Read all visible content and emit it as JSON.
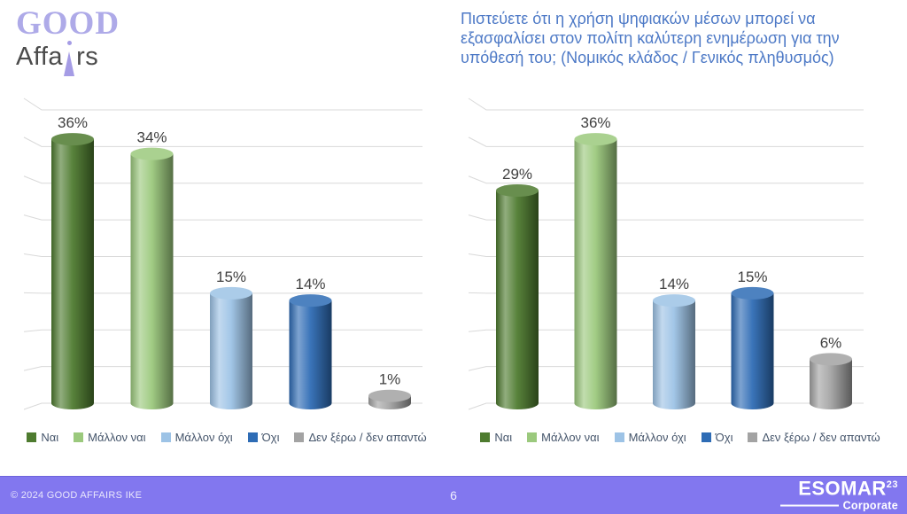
{
  "logo": {
    "line1": "GOOD",
    "line2_pre": "Affa",
    "line2_post": "rs",
    "accent_color": "#aeaae8",
    "text_color": "#4b4b4b"
  },
  "header": {
    "title": "Πιστεύετε ότι η χρήση ψηφιακών μέσων μπορεί να\nεξασφαλίσει στον πολίτη καλύτερη ενημέρωση για την\nυπόθεσή του; (Νομικός κλάδος / Γενικός πληθυσμός)",
    "title_color": "#4d79c6"
  },
  "chart_data": [
    {
      "type": "bar",
      "style": "3d-cylinder",
      "position": "left",
      "categories": [
        "Ναι",
        "Μάλλον ναι",
        "Μάλλον όχι",
        "Όχι",
        "Δεν ξέρω / δεν απαντώ"
      ],
      "values": [
        36,
        34,
        15,
        14,
        1
      ],
      "labels": [
        "36%",
        "34%",
        "15%",
        "14%",
        "1%"
      ],
      "colors": [
        "#4e7b2f",
        "#9bc97d",
        "#9dc3e6",
        "#2e6cb5",
        "#a3a3a3"
      ],
      "ylim": [
        0,
        40
      ],
      "gridline_step": 5,
      "grid": true,
      "legend_position": "bottom"
    },
    {
      "type": "bar",
      "style": "3d-cylinder",
      "position": "right",
      "categories": [
        "Ναι",
        "Μάλλον ναι",
        "Μάλλον όχι",
        "Όχι",
        "Δεν ξέρω / δεν απαντώ"
      ],
      "values": [
        29,
        36,
        14,
        15,
        6
      ],
      "labels": [
        "29%",
        "36%",
        "14%",
        "15%",
        "6%"
      ],
      "colors": [
        "#4e7b2f",
        "#9bc97d",
        "#9dc3e6",
        "#2e6cb5",
        "#a3a3a3"
      ],
      "ylim": [
        0,
        40
      ],
      "gridline_step": 5,
      "grid": true,
      "legend_position": "bottom"
    }
  ],
  "footer": {
    "copyright": "© 2024 GOOD AFFAIRS IKE",
    "page_number": "6",
    "esomar_name": "ESOMAR",
    "esomar_year": "23",
    "esomar_sub": "Corporate",
    "background": "#8277ef"
  }
}
